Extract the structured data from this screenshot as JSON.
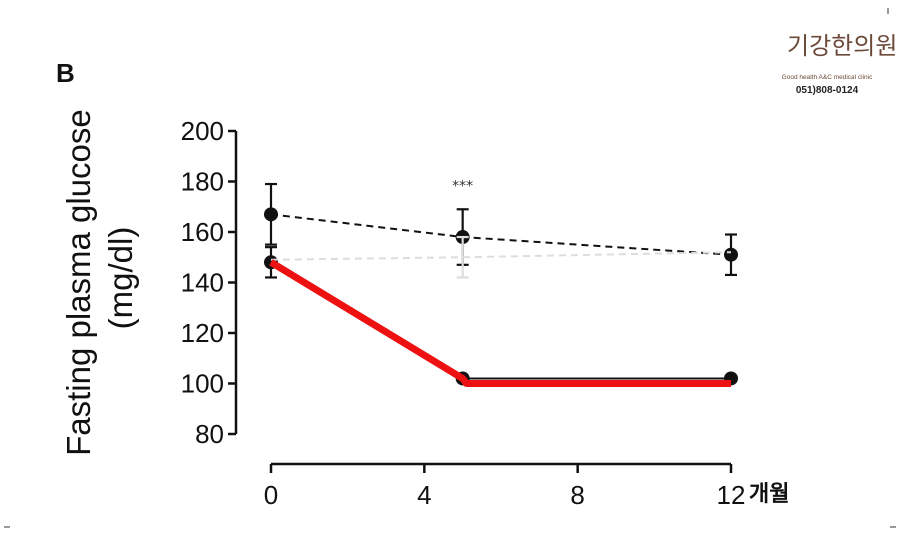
{
  "panel_label": "B",
  "x_unit_label": "개월",
  "logo": {
    "name": "기강한의원",
    "subtitle": "Good health A&C medical clinic",
    "phone": "051)808-0124"
  },
  "colors": {
    "highlight": "#ee1111",
    "series": "#111111",
    "faint_series": "#dddddd",
    "logo_brown": "#6b4a3a"
  },
  "chart_data": {
    "type": "line",
    "ylabel": "Fasting plasma glucose\n(mg/dl)",
    "xlabel": "",
    "xlim": [
      0,
      12
    ],
    "ylim": [
      80,
      200
    ],
    "x_ticks": [
      "0",
      "4",
      "8",
      "12"
    ],
    "y_ticks": [
      "80",
      "100",
      "120",
      "140",
      "160",
      "180",
      "200"
    ],
    "grid": false,
    "legend": "none",
    "annotations": [
      {
        "text": "***",
        "x": 5,
        "y": 178
      }
    ],
    "series": [
      {
        "style": "dashed",
        "color": "#111111",
        "x": [
          0,
          5,
          12
        ],
        "y": [
          167,
          158,
          151
        ],
        "error": [
          12,
          11,
          8
        ]
      },
      {
        "style": "solid",
        "color": "#111111",
        "x": [
          0,
          5,
          12
        ],
        "y": [
          148,
          102,
          102
        ],
        "error": [
          6,
          0,
          0
        ]
      },
      {
        "style": "dashed",
        "color": "#dddddd",
        "x": [
          0,
          5,
          12
        ],
        "y": [
          149,
          150,
          152
        ],
        "error": [
          0,
          8,
          0
        ]
      },
      {
        "style": "highlight",
        "color": "#ee1111",
        "x": [
          0,
          5,
          5.1,
          12
        ],
        "y": [
          148,
          102,
          100,
          100
        ]
      }
    ]
  }
}
